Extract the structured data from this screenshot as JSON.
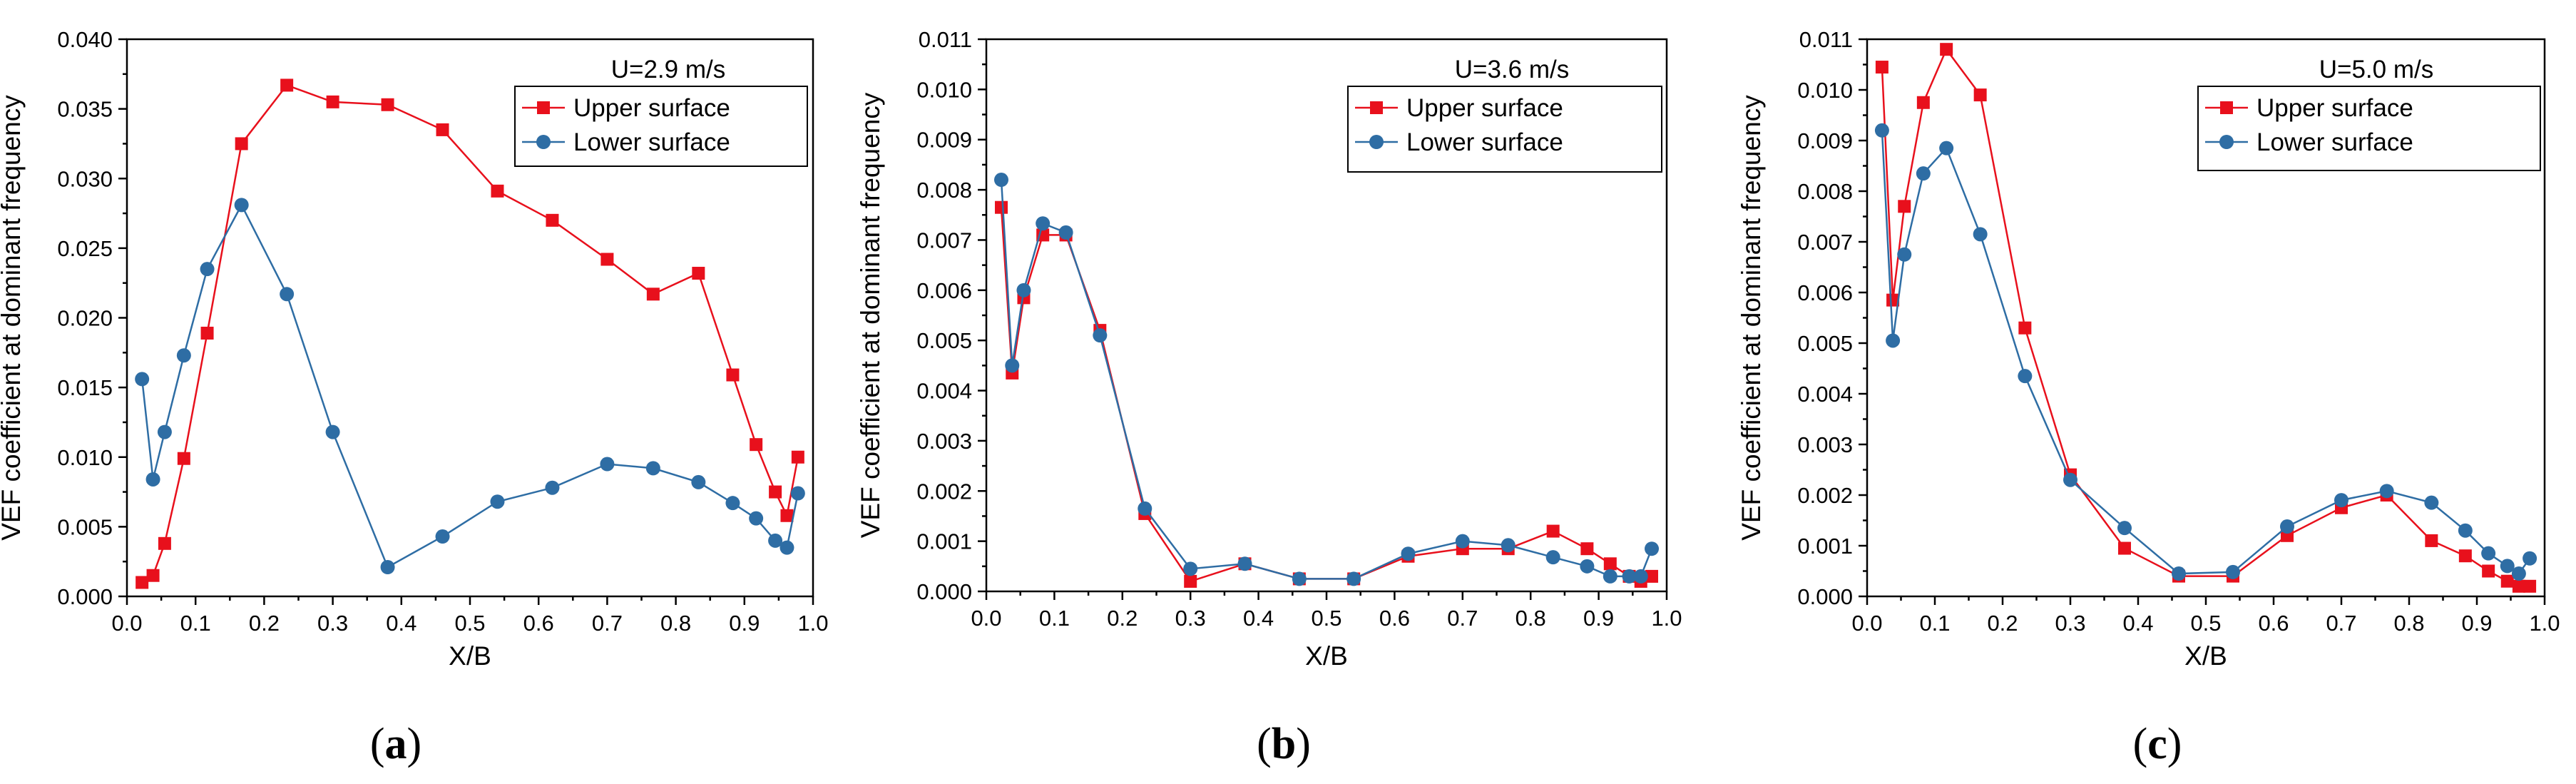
{
  "figure": {
    "colors": {
      "upper": "#e8101c",
      "lower": "#2e6da4",
      "axis": "#000000"
    }
  },
  "chart_data": [
    {
      "type": "line",
      "panel_label": "a",
      "ylabel": "VEF coefficient at dominant frequency",
      "xlabel": "X/B",
      "xlim": [
        0.0,
        1.0
      ],
      "ylim": [
        0.0,
        0.04
      ],
      "xticks": [
        0.0,
        0.1,
        0.2,
        0.3,
        0.4,
        0.5,
        0.6,
        0.7,
        0.8,
        0.9,
        1.0
      ],
      "xtick_labels": [
        "0.0",
        "0.1",
        "0.2",
        "0.3",
        "0.4",
        "0.5",
        "0.6",
        "0.7",
        "0.8",
        "0.9",
        "1.0"
      ],
      "yticks": [
        0.0,
        0.005,
        0.01,
        0.015,
        0.02,
        0.025,
        0.03,
        0.035,
        0.04
      ],
      "ytick_labels": [
        "0.000",
        "0.005",
        "0.010",
        "0.015",
        "0.020",
        "0.025",
        "0.030",
        "0.035",
        "0.040"
      ],
      "legend_title": "U=2.9 m/s",
      "legend_position": "top-right",
      "series": [
        {
          "name": "Upper surface",
          "marker": "square",
          "color": "#e8101c",
          "x": [
            0.022,
            0.038,
            0.055,
            0.083,
            0.117,
            0.167,
            0.233,
            0.3,
            0.38,
            0.46,
            0.54,
            0.62,
            0.7,
            0.767,
            0.833,
            0.883,
            0.917,
            0.945,
            0.962,
            0.978
          ],
          "y": [
            0.001,
            0.0015,
            0.0038,
            0.0099,
            0.0189,
            0.0325,
            0.0367,
            0.0355,
            0.0353,
            0.0335,
            0.0291,
            0.027,
            0.0242,
            0.0217,
            0.0232,
            0.0159,
            0.0109,
            0.0075,
            0.0058,
            0.01
          ]
        },
        {
          "name": "Lower surface",
          "marker": "circle",
          "color": "#2e6da4",
          "x": [
            0.022,
            0.038,
            0.055,
            0.083,
            0.117,
            0.167,
            0.233,
            0.3,
            0.38,
            0.46,
            0.54,
            0.62,
            0.7,
            0.767,
            0.833,
            0.883,
            0.917,
            0.945,
            0.962,
            0.978
          ],
          "y": [
            0.0156,
            0.0084,
            0.0118,
            0.0173,
            0.0235,
            0.0281,
            0.0217,
            0.0118,
            0.0021,
            0.0043,
            0.0068,
            0.0078,
            0.0095,
            0.0092,
            0.0082,
            0.0067,
            0.0056,
            0.004,
            0.0035,
            0.0074
          ]
        }
      ]
    },
    {
      "type": "line",
      "panel_label": "b",
      "ylabel": "VEF coefficient at dominant frequency",
      "xlabel": "X/B",
      "xlim": [
        0.0,
        1.0
      ],
      "ylim": [
        0.0,
        0.011
      ],
      "xticks": [
        0.0,
        0.1,
        0.2,
        0.3,
        0.4,
        0.5,
        0.6,
        0.7,
        0.8,
        0.9,
        1.0
      ],
      "xtick_labels": [
        "0.0",
        "0.1",
        "0.2",
        "0.3",
        "0.4",
        "0.5",
        "0.6",
        "0.7",
        "0.8",
        "0.9",
        "1.0"
      ],
      "yticks": [
        0.0,
        0.001,
        0.002,
        0.003,
        0.004,
        0.005,
        0.006,
        0.007,
        0.008,
        0.009,
        0.01,
        0.011
      ],
      "ytick_labels": [
        "0.000",
        "0.001",
        "0.002",
        "0.003",
        "0.004",
        "0.005",
        "0.006",
        "0.007",
        "0.008",
        "0.009",
        "0.010",
        "0.011"
      ],
      "legend_title": "U=3.6 m/s",
      "legend_position": "top-right",
      "series": [
        {
          "name": "Upper surface",
          "marker": "square",
          "color": "#e8101c",
          "x": [
            0.022,
            0.038,
            0.055,
            0.083,
            0.117,
            0.167,
            0.233,
            0.3,
            0.38,
            0.46,
            0.54,
            0.62,
            0.7,
            0.767,
            0.833,
            0.883,
            0.917,
            0.945,
            0.962,
            0.978
          ],
          "y": [
            0.00765,
            0.00435,
            0.00585,
            0.0071,
            0.0071,
            0.0052,
            0.00155,
            0.0002,
            0.00055,
            0.00025,
            0.00025,
            0.0007,
            0.00085,
            0.00085,
            0.0012,
            0.00085,
            0.00055,
            0.0003,
            0.0002,
            0.0003
          ]
        },
        {
          "name": "Lower surface",
          "marker": "circle",
          "color": "#2e6da4",
          "x": [
            0.022,
            0.038,
            0.055,
            0.083,
            0.117,
            0.167,
            0.233,
            0.3,
            0.38,
            0.46,
            0.54,
            0.62,
            0.7,
            0.767,
            0.833,
            0.883,
            0.917,
            0.945,
            0.962,
            0.978
          ],
          "y": [
            0.0082,
            0.0045,
            0.006,
            0.00733,
            0.00715,
            0.0051,
            0.00165,
            0.00045,
            0.00055,
            0.00025,
            0.00025,
            0.00075,
            0.001,
            0.00092,
            0.00068,
            0.0005,
            0.0003,
            0.0003,
            0.0003,
            0.00085
          ]
        }
      ]
    },
    {
      "type": "line",
      "panel_label": "c",
      "ylabel": "VEF coefficient at dominant frequency",
      "xlabel": "X/B",
      "xlim": [
        0.0,
        1.0
      ],
      "ylim": [
        0.0,
        0.011
      ],
      "xticks": [
        0.0,
        0.1,
        0.2,
        0.3,
        0.4,
        0.5,
        0.6,
        0.7,
        0.8,
        0.9,
        1.0
      ],
      "xtick_labels": [
        "0.0",
        "0.1",
        "0.2",
        "0.3",
        "0.4",
        "0.5",
        "0.6",
        "0.7",
        "0.8",
        "0.9",
        "1.0"
      ],
      "yticks": [
        0.0,
        0.001,
        0.002,
        0.003,
        0.004,
        0.005,
        0.006,
        0.007,
        0.008,
        0.009,
        0.01,
        0.011
      ],
      "ytick_labels": [
        "0.000",
        "0.001",
        "0.002",
        "0.003",
        "0.004",
        "0.005",
        "0.006",
        "0.007",
        "0.008",
        "0.009",
        "0.010",
        "0.011"
      ],
      "legend_title": "U=5.0 m/s",
      "legend_position": "top-right",
      "series": [
        {
          "name": "Upper surface",
          "marker": "square",
          "color": "#e8101c",
          "x": [
            0.022,
            0.038,
            0.055,
            0.083,
            0.117,
            0.167,
            0.233,
            0.3,
            0.38,
            0.46,
            0.54,
            0.62,
            0.7,
            0.767,
            0.833,
            0.883,
            0.917,
            0.945,
            0.962,
            0.978
          ],
          "y": [
            0.01045,
            0.00585,
            0.0077,
            0.00975,
            0.0108,
            0.0099,
            0.0053,
            0.0024,
            0.00095,
            0.0004,
            0.0004,
            0.0012,
            0.00175,
            0.002,
            0.0011,
            0.0008,
            0.0005,
            0.0003,
            0.0002,
            0.0002
          ]
        },
        {
          "name": "Lower surface",
          "marker": "circle",
          "color": "#2e6da4",
          "x": [
            0.022,
            0.038,
            0.055,
            0.083,
            0.117,
            0.167,
            0.233,
            0.3,
            0.38,
            0.46,
            0.54,
            0.62,
            0.7,
            0.767,
            0.833,
            0.883,
            0.917,
            0.945,
            0.962,
            0.978
          ],
          "y": [
            0.0092,
            0.00505,
            0.00675,
            0.00835,
            0.00885,
            0.00715,
            0.00435,
            0.0023,
            0.00135,
            0.00045,
            0.00048,
            0.00138,
            0.0019,
            0.00208,
            0.00185,
            0.0013,
            0.00085,
            0.0006,
            0.00045,
            0.00075
          ]
        }
      ]
    }
  ]
}
